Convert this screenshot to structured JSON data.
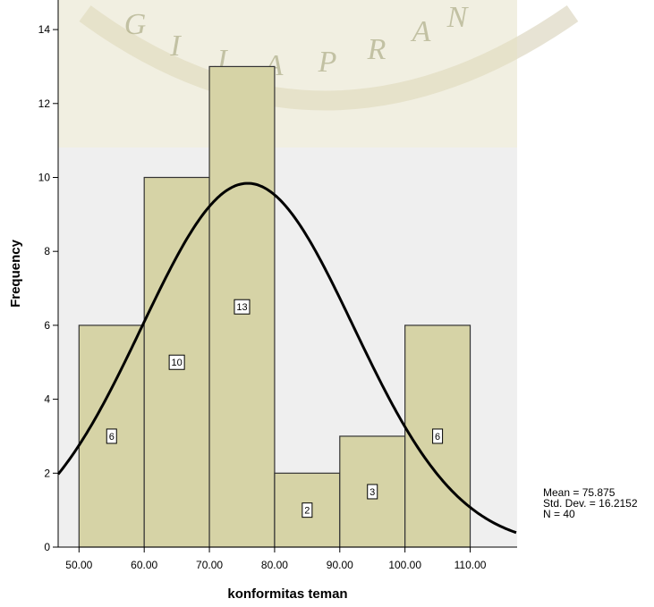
{
  "chart_data": {
    "type": "bar",
    "subtype": "histogram",
    "bins": [
      {
        "from": 50,
        "to": 60,
        "count": 6
      },
      {
        "from": 60,
        "to": 70,
        "count": 10
      },
      {
        "from": 70,
        "to": 80,
        "count": 13
      },
      {
        "from": 80,
        "to": 90,
        "count": 2
      },
      {
        "from": 90,
        "to": 100,
        "count": 3
      },
      {
        "from": 100,
        "to": 110,
        "count": 6
      }
    ],
    "bar_labels": [
      "6",
      "10",
      "13",
      "2",
      "3",
      "6"
    ],
    "normal_curve": {
      "mean": 75.875,
      "std_dev": 16.2152,
      "n": 40,
      "bin_width": 10
    },
    "xlabel": "konformitas teman",
    "ylabel": "Frequency",
    "x_ticks": [
      "50.00",
      "60.00",
      "70.00",
      "80.00",
      "90.00",
      "100.00",
      "110.00"
    ],
    "y_ticks": [
      "0",
      "2",
      "4",
      "6",
      "8",
      "10",
      "12",
      "14"
    ],
    "xlim": [
      46.8,
      117.2
    ],
    "ylim": [
      0,
      14.8
    ],
    "grid": false,
    "stats_text": {
      "mean": "Mean = 75.875",
      "std_dev": "Std. Dev. = 16.2152",
      "n": "N = 40"
    },
    "colors": {
      "bar_fill": "#d6d3a6",
      "bar_stroke": "#333333",
      "plot_bg": "#efefef",
      "curve": "#000000"
    }
  },
  "watermark": {
    "text": "GIJAPRAN"
  }
}
